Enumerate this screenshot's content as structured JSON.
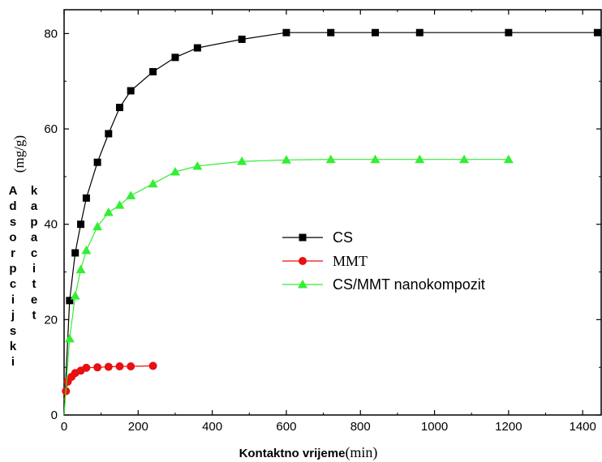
{
  "chart_data": {
    "type": "line",
    "xlabel": "Kontaktno vrijeme",
    "xlabel_unit": "(min)",
    "ylabel_words": [
      "Adsorpcijski",
      "kapacitet"
    ],
    "ylabel_unit": "(mg/g)",
    "xlim": [
      0,
      1450
    ],
    "ylim": [
      0,
      85
    ],
    "x_ticks": [
      0,
      200,
      400,
      600,
      800,
      1000,
      1200,
      1400
    ],
    "y_ticks": [
      0,
      20,
      40,
      60,
      80
    ],
    "grid": false,
    "legend_position": "center-right",
    "series": [
      {
        "name": "CS",
        "marker": "square",
        "color": "#000000",
        "label_font": "sans",
        "points": [
          [
            0,
            0
          ],
          [
            15,
            24
          ],
          [
            30,
            34
          ],
          [
            45,
            40
          ],
          [
            60,
            45.5
          ],
          [
            90,
            53
          ],
          [
            120,
            59
          ],
          [
            150,
            64.5
          ],
          [
            180,
            68
          ],
          [
            240,
            72
          ],
          [
            300,
            75
          ],
          [
            360,
            77
          ],
          [
            480,
            78.8
          ],
          [
            600,
            80.2
          ],
          [
            720,
            80.2
          ],
          [
            840,
            80.2
          ],
          [
            960,
            80.2
          ],
          [
            1200,
            80.2
          ],
          [
            1440,
            80.2
          ]
        ]
      },
      {
        "name": "MMT",
        "marker": "circle",
        "color": "#e81010",
        "label_font": "serif",
        "points": [
          [
            0,
            3
          ],
          [
            5,
            5
          ],
          [
            10,
            7
          ],
          [
            20,
            8
          ],
          [
            30,
            8.8
          ],
          [
            45,
            9.3
          ],
          [
            60,
            9.9
          ],
          [
            90,
            10
          ],
          [
            120,
            10.1
          ],
          [
            150,
            10.2
          ],
          [
            180,
            10.2
          ],
          [
            240,
            10.3
          ]
        ]
      },
      {
        "name": "CS/MMT nanokompozit",
        "marker": "triangle",
        "color": "#33ee33",
        "label_font": "sans",
        "points": [
          [
            0,
            0
          ],
          [
            15,
            16
          ],
          [
            30,
            25
          ],
          [
            45,
            30.5
          ],
          [
            60,
            34.5
          ],
          [
            90,
            39.5
          ],
          [
            120,
            42.5
          ],
          [
            150,
            44
          ],
          [
            180,
            46
          ],
          [
            240,
            48.5
          ],
          [
            300,
            51
          ],
          [
            360,
            52.2
          ],
          [
            480,
            53.2
          ],
          [
            600,
            53.5
          ],
          [
            720,
            53.6
          ],
          [
            840,
            53.6
          ],
          [
            960,
            53.6
          ],
          [
            1080,
            53.6
          ],
          [
            1200,
            53.6
          ]
        ]
      }
    ]
  }
}
